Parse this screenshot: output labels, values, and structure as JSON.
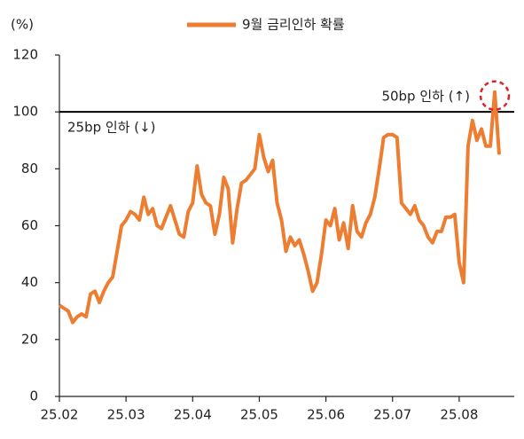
{
  "chart_data": {
    "type": "line",
    "y_unit": "(%)",
    "categories": [
      "25.02",
      null,
      null,
      null,
      null,
      null,
      null,
      null,
      null,
      null,
      null,
      null,
      null,
      null,
      null,
      "25.03",
      null,
      null,
      null,
      null,
      null,
      null,
      null,
      null,
      null,
      null,
      null,
      null,
      null,
      null,
      "25.04",
      null,
      null,
      null,
      null,
      null,
      null,
      null,
      null,
      null,
      null,
      null,
      null,
      null,
      null,
      "25.05",
      null,
      null,
      null,
      null,
      null,
      null,
      null,
      null,
      null,
      null,
      null,
      null,
      null,
      null,
      "25.06",
      null,
      null,
      null,
      null,
      null,
      null,
      null,
      null,
      null,
      null,
      null,
      null,
      null,
      null,
      "25.07",
      null,
      null,
      null,
      null,
      null,
      null,
      null,
      null,
      null,
      null,
      null,
      null,
      null,
      null,
      "25.08",
      null,
      null,
      null,
      null,
      null,
      null,
      null,
      null,
      null
    ],
    "series": [
      {
        "name": "9월 금리인하 확률",
        "color": "#ed7d31",
        "values": [
          32,
          31,
          30,
          26,
          28,
          29,
          28,
          36,
          37,
          33,
          37,
          40,
          42,
          51,
          60,
          62,
          65,
          64,
          62,
          70,
          64,
          66,
          60,
          59,
          63,
          67,
          62,
          57,
          56,
          65,
          68,
          81,
          71,
          68,
          67,
          57,
          64,
          77,
          73,
          54,
          66,
          75,
          76,
          78,
          80,
          92,
          84,
          79,
          83,
          68,
          62,
          51,
          56,
          53,
          55,
          50,
          44,
          37,
          40,
          50,
          62,
          60,
          66,
          55,
          61,
          52,
          67,
          58,
          56,
          61,
          64,
          70,
          80,
          91,
          92,
          92,
          91,
          68,
          66,
          64,
          67,
          62,
          60,
          56,
          54,
          58,
          58,
          63,
          63,
          64,
          47,
          40,
          88,
          97,
          90,
          94,
          88,
          88,
          107,
          85
        ]
      }
    ],
    "ylim": [
      0,
      120
    ],
    "yticks": [
      0,
      20,
      40,
      60,
      80,
      100,
      120
    ],
    "reference_line": {
      "value": 100,
      "label_above": "50bp 인하 (↑)",
      "label_below": "25bp 인하 (↓)"
    },
    "legend": "top"
  }
}
